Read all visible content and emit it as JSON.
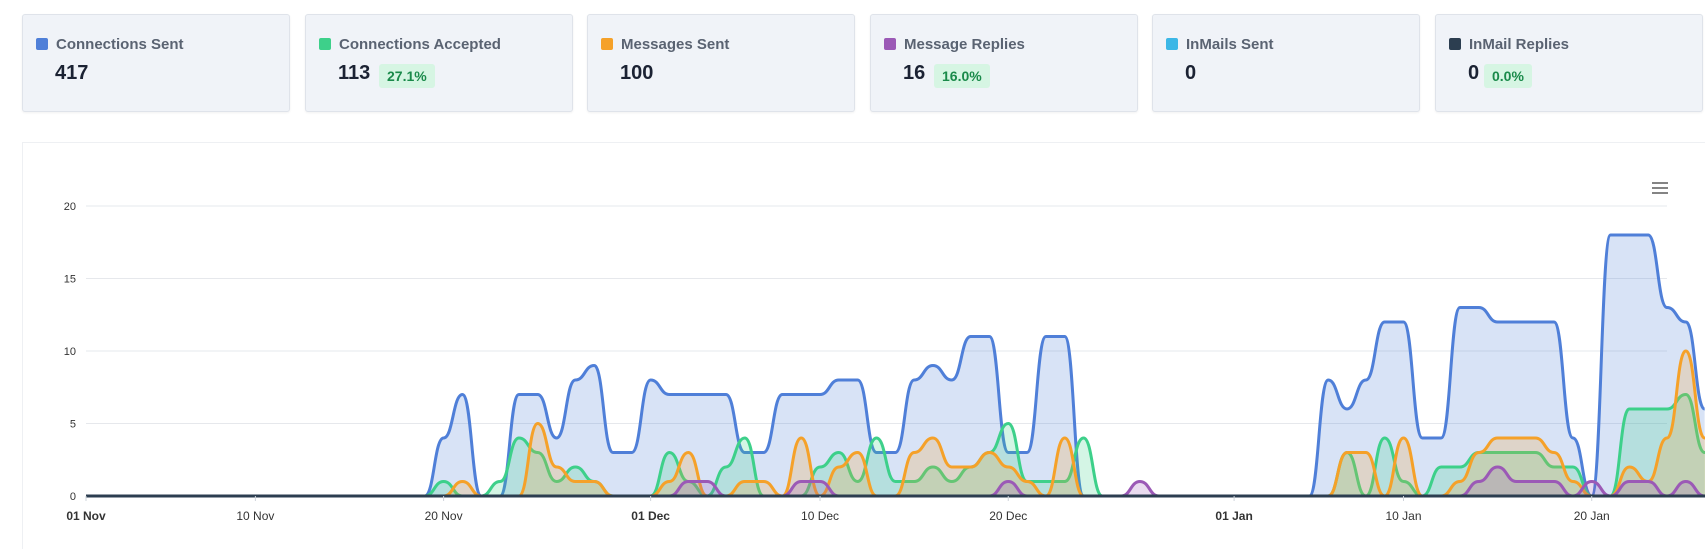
{
  "stats": [
    {
      "label": "Connections Sent",
      "value": "417",
      "badge": null,
      "color": "#4f7fd8"
    },
    {
      "label": "Connections Accepted",
      "value": "113",
      "badge": "27.1%",
      "color": "#3dd08a"
    },
    {
      "label": "Messages Sent",
      "value": "100",
      "badge": null,
      "color": "#f5a129"
    },
    {
      "label": "Message Replies",
      "value": "16",
      "badge": "16.0%",
      "color": "#9b59b6"
    },
    {
      "label": "InMails Sent",
      "value": "0",
      "badge": null,
      "color": "#3cb7e6"
    },
    {
      "label": "InMail Replies",
      "value": "0",
      "badge": "0.0%",
      "color": "#2c3e50"
    }
  ],
  "chart_data": {
    "type": "area",
    "menu_icon": "hamburger-menu-icon",
    "start_date": "2023-11-01",
    "ylim": [
      0,
      20
    ],
    "yticks": [
      0,
      5,
      10,
      15,
      20
    ],
    "xticks": [
      {
        "label": "01 Nov",
        "day": 0,
        "bold": true
      },
      {
        "label": "10 Nov",
        "day": 9,
        "bold": false
      },
      {
        "label": "20 Nov",
        "day": 19,
        "bold": false
      },
      {
        "label": "01 Dec",
        "day": 30,
        "bold": true
      },
      {
        "label": "10 Dec",
        "day": 39,
        "bold": false
      },
      {
        "label": "20 Dec",
        "day": 49,
        "bold": false
      },
      {
        "label": "01 Jan",
        "day": 61,
        "bold": true
      },
      {
        "label": "10 Jan",
        "day": 70,
        "bold": false
      },
      {
        "label": "20 Jan",
        "day": 80,
        "bold": false
      }
    ],
    "x_days": 84,
    "series": [
      {
        "name": "Connections Sent",
        "color": "#4f7fd8",
        "values": [
          0,
          0,
          0,
          0,
          0,
          0,
          0,
          0,
          0,
          0,
          0,
          0,
          0,
          0,
          0,
          0,
          0,
          0,
          0,
          4,
          7,
          0,
          0,
          7,
          7,
          4,
          8,
          9,
          3,
          3,
          8,
          7,
          7,
          7,
          7,
          3,
          3,
          7,
          7,
          7,
          8,
          8,
          3,
          3,
          8,
          9,
          8,
          11,
          11,
          3,
          3,
          11,
          11,
          0,
          0,
          0,
          0,
          0,
          0,
          0,
          0,
          0,
          0,
          0,
          0,
          0,
          8,
          6,
          8,
          12,
          12,
          4,
          4,
          13,
          13,
          12,
          12,
          12,
          12,
          4,
          0,
          18,
          18,
          18,
          13,
          12,
          6
        ]
      },
      {
        "name": "Connections Accepted",
        "color": "#3dd08a",
        "values": [
          0,
          0,
          0,
          0,
          0,
          0,
          0,
          0,
          0,
          0,
          0,
          0,
          0,
          0,
          0,
          0,
          0,
          0,
          0,
          1,
          0,
          0,
          1,
          4,
          3,
          1,
          2,
          1,
          0,
          0,
          0,
          3,
          1,
          0,
          2,
          4,
          0,
          0,
          0,
          2,
          3,
          1,
          4,
          1,
          1,
          2,
          1,
          2,
          3,
          5,
          1,
          1,
          1,
          4,
          0,
          0,
          0,
          0,
          0,
          0,
          0,
          0,
          0,
          0,
          0,
          0,
          0,
          3,
          0,
          4,
          1,
          0,
          2,
          2,
          3,
          3,
          3,
          3,
          2,
          2,
          0,
          0,
          6,
          6,
          6,
          7,
          3,
          1
        ]
      },
      {
        "name": "Messages Sent",
        "color": "#f5a129",
        "values": [
          0,
          0,
          0,
          0,
          0,
          0,
          0,
          0,
          0,
          0,
          0,
          0,
          0,
          0,
          0,
          0,
          0,
          0,
          0,
          0,
          1,
          0,
          0,
          0,
          5,
          2,
          1,
          1,
          0,
          0,
          0,
          1,
          3,
          0,
          0,
          1,
          1,
          0,
          4,
          0,
          2,
          3,
          0,
          0,
          3,
          4,
          2,
          2,
          3,
          2,
          1,
          0,
          4,
          0,
          0,
          0,
          0,
          0,
          0,
          0,
          0,
          0,
          0,
          0,
          0,
          0,
          0,
          3,
          3,
          0,
          4,
          0,
          0,
          1,
          3,
          4,
          4,
          4,
          3,
          1,
          0,
          0,
          2,
          1,
          4,
          10,
          4,
          2
        ]
      },
      {
        "name": "Message Replies",
        "color": "#9b59b6",
        "values": [
          0,
          0,
          0,
          0,
          0,
          0,
          0,
          0,
          0,
          0,
          0,
          0,
          0,
          0,
          0,
          0,
          0,
          0,
          0,
          0,
          0,
          0,
          0,
          0,
          0,
          0,
          0,
          0,
          0,
          0,
          0,
          0,
          1,
          1,
          0,
          0,
          0,
          0,
          1,
          1,
          0,
          0,
          0,
          0,
          0,
          0,
          0,
          0,
          0,
          1,
          0,
          0,
          0,
          0,
          0,
          0,
          1,
          0,
          0,
          0,
          0,
          0,
          0,
          0,
          0,
          0,
          0,
          0,
          0,
          0,
          0,
          0,
          0,
          0,
          1,
          2,
          1,
          1,
          1,
          0,
          1,
          0,
          1,
          1,
          0,
          1,
          0
        ]
      },
      {
        "name": "InMails Sent",
        "color": "#3cb7e6",
        "values": [
          0,
          0,
          0,
          0,
          0,
          0,
          0,
          0,
          0,
          0,
          0,
          0,
          0,
          0,
          0,
          0,
          0,
          0,
          0,
          0,
          0,
          0,
          0,
          0,
          0,
          0,
          0,
          0,
          0,
          0,
          0,
          0,
          0,
          0,
          0,
          0,
          0,
          0,
          0,
          0,
          0,
          0,
          0,
          0,
          0,
          0,
          0,
          0,
          0,
          0,
          0,
          0,
          0,
          0,
          0,
          0,
          0,
          0,
          0,
          0,
          0,
          0,
          0,
          0,
          0,
          0,
          0,
          0,
          0,
          0,
          0,
          0,
          0,
          0,
          0,
          0,
          0,
          0,
          0,
          0,
          0,
          0,
          0,
          0,
          0,
          0,
          0,
          0
        ]
      },
      {
        "name": "InMail Replies",
        "color": "#2c3e50",
        "values": [
          0,
          0,
          0,
          0,
          0,
          0,
          0,
          0,
          0,
          0,
          0,
          0,
          0,
          0,
          0,
          0,
          0,
          0,
          0,
          0,
          0,
          0,
          0,
          0,
          0,
          0,
          0,
          0,
          0,
          0,
          0,
          0,
          0,
          0,
          0,
          0,
          0,
          0,
          0,
          0,
          0,
          0,
          0,
          0,
          0,
          0,
          0,
          0,
          0,
          0,
          0,
          0,
          0,
          0,
          0,
          0,
          0,
          0,
          0,
          0,
          0,
          0,
          0,
          0,
          0,
          0,
          0,
          0,
          0,
          0,
          0,
          0,
          0,
          0,
          0,
          0,
          0,
          0,
          0,
          0,
          0,
          0,
          0,
          0,
          0,
          0,
          0,
          0
        ]
      }
    ]
  }
}
